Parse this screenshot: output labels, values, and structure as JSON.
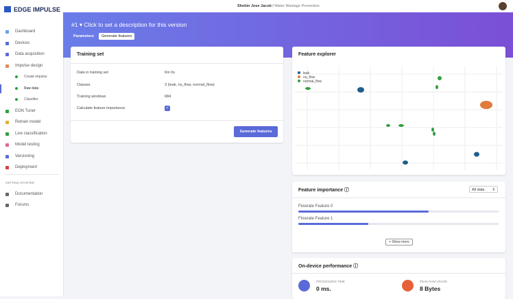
{
  "sidebar": {
    "logo": "EDGE IMPULSE",
    "menu": [
      "Dashboard",
      "Devices",
      "Data acquisition",
      "Impulse design",
      "Create impulse",
      "Raw data",
      "Classifier",
      "EON Tuner",
      "Retrain model",
      "Live classification",
      "Model testing",
      "Versioning",
      "Deployment"
    ],
    "section": "GETTING STARTED",
    "links": [
      "Documentation",
      "Forums"
    ]
  },
  "header": {
    "user": "Shebin Jose Jacob",
    "separator": "/",
    "project": "Water Wastage Prevention"
  },
  "banner": {
    "version": "#1",
    "description": "Click to set a description for this version",
    "tabs": [
      "Parameters",
      "Generate features"
    ]
  },
  "training_set": {
    "title": "Training set",
    "rows": [
      {
        "label": "Data in training set",
        "value": "6m 0s"
      },
      {
        "label": "Classes",
        "value": "3 (leak, no_flow, normal_flow)"
      },
      {
        "label": "Training windows",
        "value": "684"
      }
    ],
    "checkbox_label": "Calculate feature importance",
    "checked": true,
    "button": "Generate features"
  },
  "feature_explorer": {
    "title": "Feature explorer",
    "legend": [
      {
        "name": "leak",
        "color": "#1f5f8b"
      },
      {
        "name": "no_flow",
        "color": "#e07b39"
      },
      {
        "name": "normal_flow",
        "color": "#2f9e3f"
      }
    ]
  },
  "feature_importance": {
    "title": "Feature importance",
    "filter": "All data",
    "features": [
      {
        "name": "Flowrate Feature 0",
        "value": 0.65
      },
      {
        "name": "Flowrate Feature 1",
        "value": 0.35
      }
    ],
    "button": "+ Show more"
  },
  "performance": {
    "title": "On-device performance",
    "metrics": [
      {
        "label": "PROCESSING TIME",
        "value": "0 ms."
      },
      {
        "label": "PEAK RAM USAGE",
        "value": "8 Bytes"
      }
    ]
  }
}
